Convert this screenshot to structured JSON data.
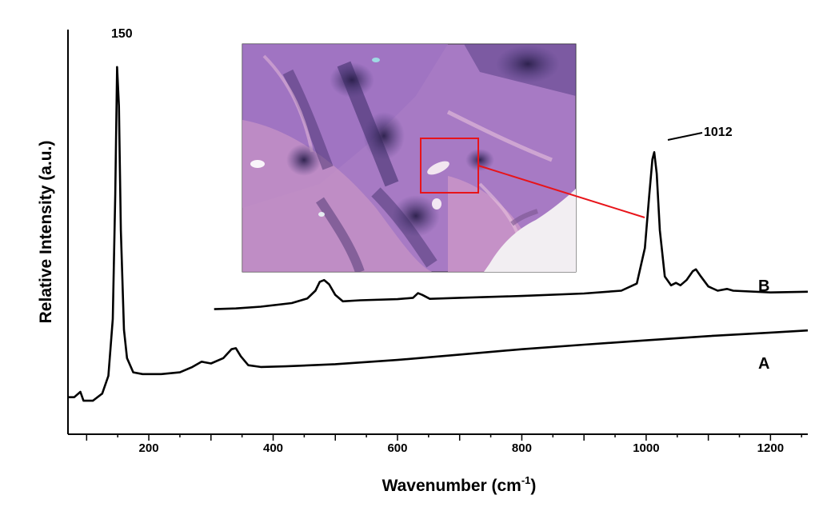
{
  "chart_data": {
    "type": "line",
    "xlabel": "Wavenumber (cm",
    "xlabel_sup": "-1",
    "xlabel_close": ")",
    "ylabel": "Relative Intensity (a.u.)",
    "xlim": [
      70,
      1260
    ],
    "x_ticks": [
      200,
      400,
      600,
      800,
      1000,
      1200
    ],
    "grid": false,
    "annotations": [
      "150",
      "1012"
    ],
    "series": [
      {
        "name": "A",
        "points": [
          [
            70,
            0.03
          ],
          [
            80,
            0.03
          ],
          [
            90,
            0.045
          ],
          [
            95,
            0.02
          ],
          [
            110,
            0.02
          ],
          [
            125,
            0.04
          ],
          [
            135,
            0.09
          ],
          [
            142,
            0.25
          ],
          [
            146,
            0.6
          ],
          [
            149,
            0.96
          ],
          [
            152,
            0.85
          ],
          [
            155,
            0.5
          ],
          [
            160,
            0.22
          ],
          [
            165,
            0.14
          ],
          [
            175,
            0.1
          ],
          [
            190,
            0.095
          ],
          [
            220,
            0.095
          ],
          [
            250,
            0.1
          ],
          [
            270,
            0.115
          ],
          [
            285,
            0.13
          ],
          [
            300,
            0.125
          ],
          [
            320,
            0.14
          ],
          [
            333,
            0.165
          ],
          [
            340,
            0.168
          ],
          [
            348,
            0.145
          ],
          [
            360,
            0.12
          ],
          [
            380,
            0.115
          ],
          [
            420,
            0.117
          ],
          [
            500,
            0.123
          ],
          [
            600,
            0.135
          ],
          [
            700,
            0.15
          ],
          [
            800,
            0.165
          ],
          [
            900,
            0.178
          ],
          [
            1000,
            0.19
          ],
          [
            1100,
            0.202
          ],
          [
            1200,
            0.212
          ],
          [
            1260,
            0.218
          ]
        ]
      },
      {
        "name": "B",
        "points": [
          [
            305,
            0.278
          ],
          [
            340,
            0.28
          ],
          [
            380,
            0.285
          ],
          [
            430,
            0.295
          ],
          [
            455,
            0.308
          ],
          [
            468,
            0.33
          ],
          [
            475,
            0.355
          ],
          [
            482,
            0.36
          ],
          [
            490,
            0.348
          ],
          [
            500,
            0.318
          ],
          [
            512,
            0.3
          ],
          [
            540,
            0.303
          ],
          [
            600,
            0.306
          ],
          [
            625,
            0.31
          ],
          [
            633,
            0.323
          ],
          [
            640,
            0.318
          ],
          [
            652,
            0.307
          ],
          [
            700,
            0.31
          ],
          [
            800,
            0.315
          ],
          [
            900,
            0.322
          ],
          [
            960,
            0.33
          ],
          [
            985,
            0.35
          ],
          [
            998,
            0.45
          ],
          [
            1005,
            0.6
          ],
          [
            1010,
            0.7
          ],
          [
            1013,
            0.72
          ],
          [
            1017,
            0.66
          ],
          [
            1022,
            0.5
          ],
          [
            1030,
            0.37
          ],
          [
            1040,
            0.345
          ],
          [
            1048,
            0.352
          ],
          [
            1055,
            0.345
          ],
          [
            1065,
            0.36
          ],
          [
            1075,
            0.385
          ],
          [
            1080,
            0.39
          ],
          [
            1088,
            0.37
          ],
          [
            1100,
            0.342
          ],
          [
            1115,
            0.33
          ],
          [
            1130,
            0.335
          ],
          [
            1140,
            0.33
          ],
          [
            1200,
            0.325
          ],
          [
            1260,
            0.327
          ]
        ]
      }
    ]
  },
  "inset": {
    "description_colors": {
      "tissue_base": "#a77ac4",
      "tissue_pink": "#d8a1c6",
      "nuclei": "#3a2a5a",
      "background": "#f3f0f2",
      "highlight_box": "#e8141a",
      "pointer_line": "#e8141a"
    }
  }
}
